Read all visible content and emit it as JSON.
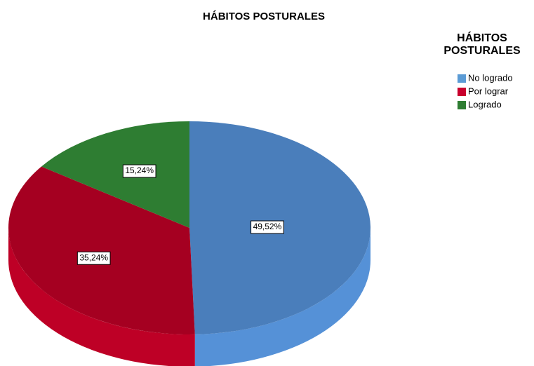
{
  "chart_data": {
    "type": "pie",
    "title": "HÁBITOS POSTURALES",
    "legend_title": "HÁBITOS POSTURALES",
    "categories": [
      "No logrado",
      "Por lograr",
      "Logrado"
    ],
    "values": [
      49.52,
      35.24,
      15.24
    ],
    "value_labels": [
      "49,52%",
      "35,24%",
      "15,24%"
    ],
    "colors": [
      "#4a7ebb",
      "#a50021",
      "#2e7d32"
    ],
    "legend_colors": [
      "#5b9bd5",
      "#c8002d",
      "#2e7d32"
    ]
  }
}
